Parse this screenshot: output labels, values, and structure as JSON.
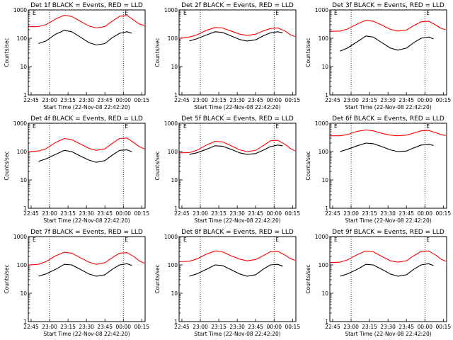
{
  "figure": {
    "xlabel": "Start Time (22-Nov-08 22:42:20)",
    "ylabel": "Counts/sec"
  },
  "chart_data": [
    {
      "type": "line",
      "title": "Det 1f BLACK = Events, RED = LLD",
      "x_ticks": [
        "22:45",
        "23:00",
        "23:15",
        "23:30",
        "23:45",
        "00:00",
        "00:15"
      ],
      "y_ticks": [
        "1",
        "10",
        "100",
        "1000"
      ],
      "ylim": [
        1,
        1000
      ],
      "xlim": [
        -2.3,
        92.7
      ],
      "log_y": true,
      "marker_label": "E",
      "series": [
        {
          "name": "LLD",
          "color": "#ff0000",
          "x": [
            -2,
            6,
            12,
            20,
            27,
            33,
            40,
            47,
            53,
            60,
            66,
            72,
            78,
            84,
            88,
            92
          ],
          "y": [
            255,
            260,
            300,
            480,
            650,
            590,
            400,
            270,
            230,
            260,
            400,
            600,
            640,
            420,
            320,
            280
          ]
        },
        {
          "name": "Events",
          "color": "#000000",
          "x": [
            6,
            12,
            20,
            27,
            33,
            40,
            47,
            53,
            60,
            66,
            72,
            78,
            82
          ],
          "y": [
            65,
            80,
            140,
            190,
            170,
            110,
            70,
            58,
            65,
            105,
            150,
            170,
            150
          ]
        }
      ]
    },
    {
      "type": "line",
      "title": "Det 2f BLACK = Events, RED = LLD",
      "x_ticks": [
        "22:45",
        "23:00",
        "23:15",
        "23:30",
        "23:45",
        "00:00",
        "00:15"
      ],
      "y_ticks": [
        "1",
        "10",
        "100",
        "1000"
      ],
      "ylim": [
        1,
        1000
      ],
      "xlim": [
        -2.3,
        92.7
      ],
      "log_y": true,
      "marker_label": "E",
      "series": [
        {
          "name": "LLD",
          "color": "#ff0000",
          "x": [
            -2,
            6,
            12,
            20,
            27,
            33,
            40,
            47,
            53,
            60,
            66,
            72,
            78,
            84,
            88,
            92
          ],
          "y": [
            100,
            110,
            130,
            190,
            240,
            230,
            180,
            140,
            125,
            140,
            180,
            220,
            230,
            180,
            135,
            115
          ]
        },
        {
          "name": "Events",
          "color": "#000000",
          "x": [
            6,
            12,
            20,
            27,
            33,
            40,
            47,
            53,
            60,
            66,
            72,
            78,
            82
          ],
          "y": [
            80,
            95,
            130,
            170,
            160,
            120,
            90,
            80,
            88,
            120,
            155,
            170,
            155
          ]
        }
      ]
    },
    {
      "type": "line",
      "title": "Det 3f BLACK = Events, RED = LLD",
      "x_ticks": [
        "22:45",
        "23:00",
        "23:15",
        "23:30",
        "23:45",
        "00:00",
        "00:15"
      ],
      "y_ticks": [
        "1",
        "10",
        "100",
        "1000"
      ],
      "ylim": [
        1,
        1000
      ],
      "xlim": [
        -2.3,
        92.7
      ],
      "log_y": true,
      "marker_label": "E",
      "series": [
        {
          "name": "LLD",
          "color": "#ff0000",
          "x": [
            -2,
            6,
            12,
            20,
            27,
            33,
            40,
            47,
            53,
            60,
            66,
            72,
            78,
            84,
            88,
            92
          ],
          "y": [
            175,
            180,
            210,
            320,
            430,
            400,
            290,
            205,
            180,
            195,
            280,
            380,
            400,
            290,
            225,
            200
          ]
        },
        {
          "name": "Events",
          "color": "#000000",
          "x": [
            6,
            12,
            20,
            27,
            33,
            40,
            47,
            53,
            60,
            66,
            72,
            78,
            82
          ],
          "y": [
            35,
            45,
            75,
            120,
            110,
            70,
            45,
            38,
            45,
            70,
            100,
            110,
            95
          ]
        }
      ]
    },
    {
      "type": "line",
      "title": "Det 4f BLACK = Events, RED = LLD",
      "x_ticks": [
        "22:45",
        "23:00",
        "23:15",
        "23:30",
        "23:45",
        "00:00",
        "00:15"
      ],
      "y_ticks": [
        "1",
        "10",
        "100",
        "1000"
      ],
      "ylim": [
        1,
        1000
      ],
      "xlim": [
        -2.3,
        92.7
      ],
      "log_y": true,
      "marker_label": "E",
      "series": [
        {
          "name": "LLD",
          "color": "#ff0000",
          "x": [
            -2,
            6,
            12,
            20,
            27,
            33,
            40,
            47,
            53,
            60,
            66,
            72,
            78,
            84,
            88,
            92
          ],
          "y": [
            100,
            105,
            125,
            210,
            290,
            265,
            185,
            130,
            110,
            125,
            195,
            290,
            300,
            200,
            150,
            125
          ]
        },
        {
          "name": "Events",
          "color": "#000000",
          "x": [
            6,
            12,
            20,
            27,
            33,
            40,
            47,
            53,
            60,
            66,
            72,
            78,
            82
          ],
          "y": [
            45,
            55,
            80,
            110,
            100,
            70,
            50,
            42,
            48,
            75,
            110,
            115,
            100
          ]
        }
      ]
    },
    {
      "type": "line",
      "title": "Det 5f BLACK = Events, RED = LLD",
      "x_ticks": [
        "22:45",
        "23:00",
        "23:15",
        "23:30",
        "23:45",
        "00:00",
        "00:15"
      ],
      "y_ticks": [
        "1",
        "10",
        "100",
        "1000"
      ],
      "ylim": [
        1,
        1000
      ],
      "xlim": [
        -2.3,
        92.7
      ],
      "log_y": true,
      "marker_label": "E",
      "series": [
        {
          "name": "LLD",
          "color": "#ff0000",
          "x": [
            -2,
            6,
            12,
            20,
            27,
            33,
            40,
            47,
            53,
            60,
            66,
            72,
            78,
            84,
            88,
            92
          ],
          "y": [
            90,
            92,
            110,
            170,
            230,
            220,
            160,
            115,
            100,
            110,
            160,
            240,
            250,
            180,
            130,
            105
          ]
        },
        {
          "name": "Events",
          "color": "#000000",
          "x": [
            6,
            12,
            20,
            27,
            33,
            40,
            47,
            53,
            60,
            66,
            72,
            78,
            82
          ],
          "y": [
            80,
            90,
            120,
            160,
            155,
            120,
            90,
            80,
            85,
            110,
            150,
            170,
            160
          ]
        }
      ]
    },
    {
      "type": "line",
      "title": "Det 6f BLACK = Events, RED = LLD",
      "x_ticks": [
        "22:45",
        "23:00",
        "23:15",
        "23:30",
        "23:45",
        "00:00",
        "00:15"
      ],
      "y_ticks": [
        "1",
        "10",
        "100",
        "1000"
      ],
      "ylim": [
        1,
        1000
      ],
      "xlim": [
        -2.3,
        92.7
      ],
      "log_y": true,
      "marker_label": "E",
      "series": [
        {
          "name": "LLD",
          "color": "#ff0000",
          "x": [
            -2,
            6,
            12,
            20,
            27,
            33,
            40,
            47,
            53,
            60,
            66,
            72,
            78,
            84,
            88,
            92
          ],
          "y": [
            360,
            360,
            400,
            520,
            580,
            540,
            440,
            380,
            360,
            380,
            450,
            540,
            560,
            460,
            400,
            370
          ]
        },
        {
          "name": "Events",
          "color": "#000000",
          "x": [
            6,
            12,
            20,
            27,
            33,
            40,
            47,
            53,
            60,
            66,
            72,
            78,
            82
          ],
          "y": [
            100,
            120,
            160,
            200,
            190,
            150,
            115,
            100,
            105,
            135,
            170,
            180,
            165
          ]
        }
      ]
    },
    {
      "type": "line",
      "title": "Det 7f BLACK = Events, RED = LLD",
      "x_ticks": [
        "22:45",
        "23:00",
        "23:15",
        "23:30",
        "23:45",
        "00:00",
        "00:15"
      ],
      "y_ticks": [
        "1",
        "10",
        "100",
        "1000"
      ],
      "ylim": [
        1,
        1000
      ],
      "xlim": [
        -2.3,
        92.7
      ],
      "log_y": true,
      "marker_label": "E",
      "series": [
        {
          "name": "LLD",
          "color": "#ff0000",
          "x": [
            -2,
            6,
            12,
            20,
            27,
            33,
            40,
            47,
            53,
            60,
            66,
            72,
            78,
            84,
            88,
            92
          ],
          "y": [
            100,
            105,
            130,
            210,
            280,
            260,
            180,
            125,
            105,
            120,
            180,
            260,
            270,
            190,
            140,
            115
          ]
        },
        {
          "name": "Events",
          "color": "#000000",
          "x": [
            6,
            12,
            20,
            27,
            33,
            40,
            47,
            53,
            60,
            66,
            72,
            78,
            82
          ],
          "y": [
            40,
            48,
            70,
            105,
            100,
            70,
            48,
            40,
            45,
            70,
            100,
            110,
            95
          ]
        }
      ]
    },
    {
      "type": "line",
      "title": "Det 8f BLACK = Events, RED = LLD",
      "x_ticks": [
        "22:45",
        "23:00",
        "23:15",
        "23:30",
        "23:45",
        "00:00",
        "00:15"
      ],
      "y_ticks": [
        "1",
        "10",
        "100",
        "1000"
      ],
      "ylim": [
        1,
        1000
      ],
      "xlim": [
        -2.3,
        92.7
      ],
      "log_y": true,
      "marker_label": "E",
      "series": [
        {
          "name": "LLD",
          "color": "#ff0000",
          "x": [
            -2,
            6,
            12,
            20,
            27,
            33,
            40,
            47,
            53,
            60,
            66,
            72,
            78,
            84,
            88,
            92
          ],
          "y": [
            130,
            135,
            160,
            240,
            310,
            290,
            210,
            160,
            140,
            155,
            210,
            290,
            300,
            220,
            170,
            145
          ]
        },
        {
          "name": "Events",
          "color": "#000000",
          "x": [
            6,
            12,
            20,
            27,
            33,
            40,
            47,
            53,
            60,
            66,
            72,
            78,
            82
          ],
          "y": [
            40,
            48,
            70,
            100,
            95,
            68,
            48,
            40,
            45,
            70,
            100,
            105,
            90
          ]
        }
      ]
    },
    {
      "type": "line",
      "title": "Det 9f BLACK = Events, RED = LLD",
      "x_ticks": [
        "22:45",
        "23:00",
        "23:15",
        "23:30",
        "23:45",
        "00:00",
        "00:15"
      ],
      "y_ticks": [
        "1",
        "10",
        "100",
        "1000"
      ],
      "ylim": [
        1,
        1000
      ],
      "xlim": [
        -2.3,
        92.7
      ],
      "log_y": true,
      "marker_label": "E",
      "series": [
        {
          "name": "LLD",
          "color": "#ff0000",
          "x": [
            -2,
            6,
            12,
            20,
            27,
            33,
            40,
            47,
            53,
            60,
            66,
            72,
            78,
            84,
            88,
            92
          ],
          "y": [
            120,
            125,
            150,
            230,
            310,
            290,
            200,
            140,
            125,
            140,
            210,
            300,
            310,
            220,
            160,
            135
          ]
        },
        {
          "name": "Events",
          "color": "#000000",
          "x": [
            6,
            12,
            20,
            27,
            33,
            40,
            47,
            53,
            60,
            66,
            72,
            78,
            82
          ],
          "y": [
            40,
            48,
            70,
            105,
            100,
            70,
            48,
            40,
            45,
            70,
            100,
            110,
            95
          ]
        }
      ]
    }
  ]
}
